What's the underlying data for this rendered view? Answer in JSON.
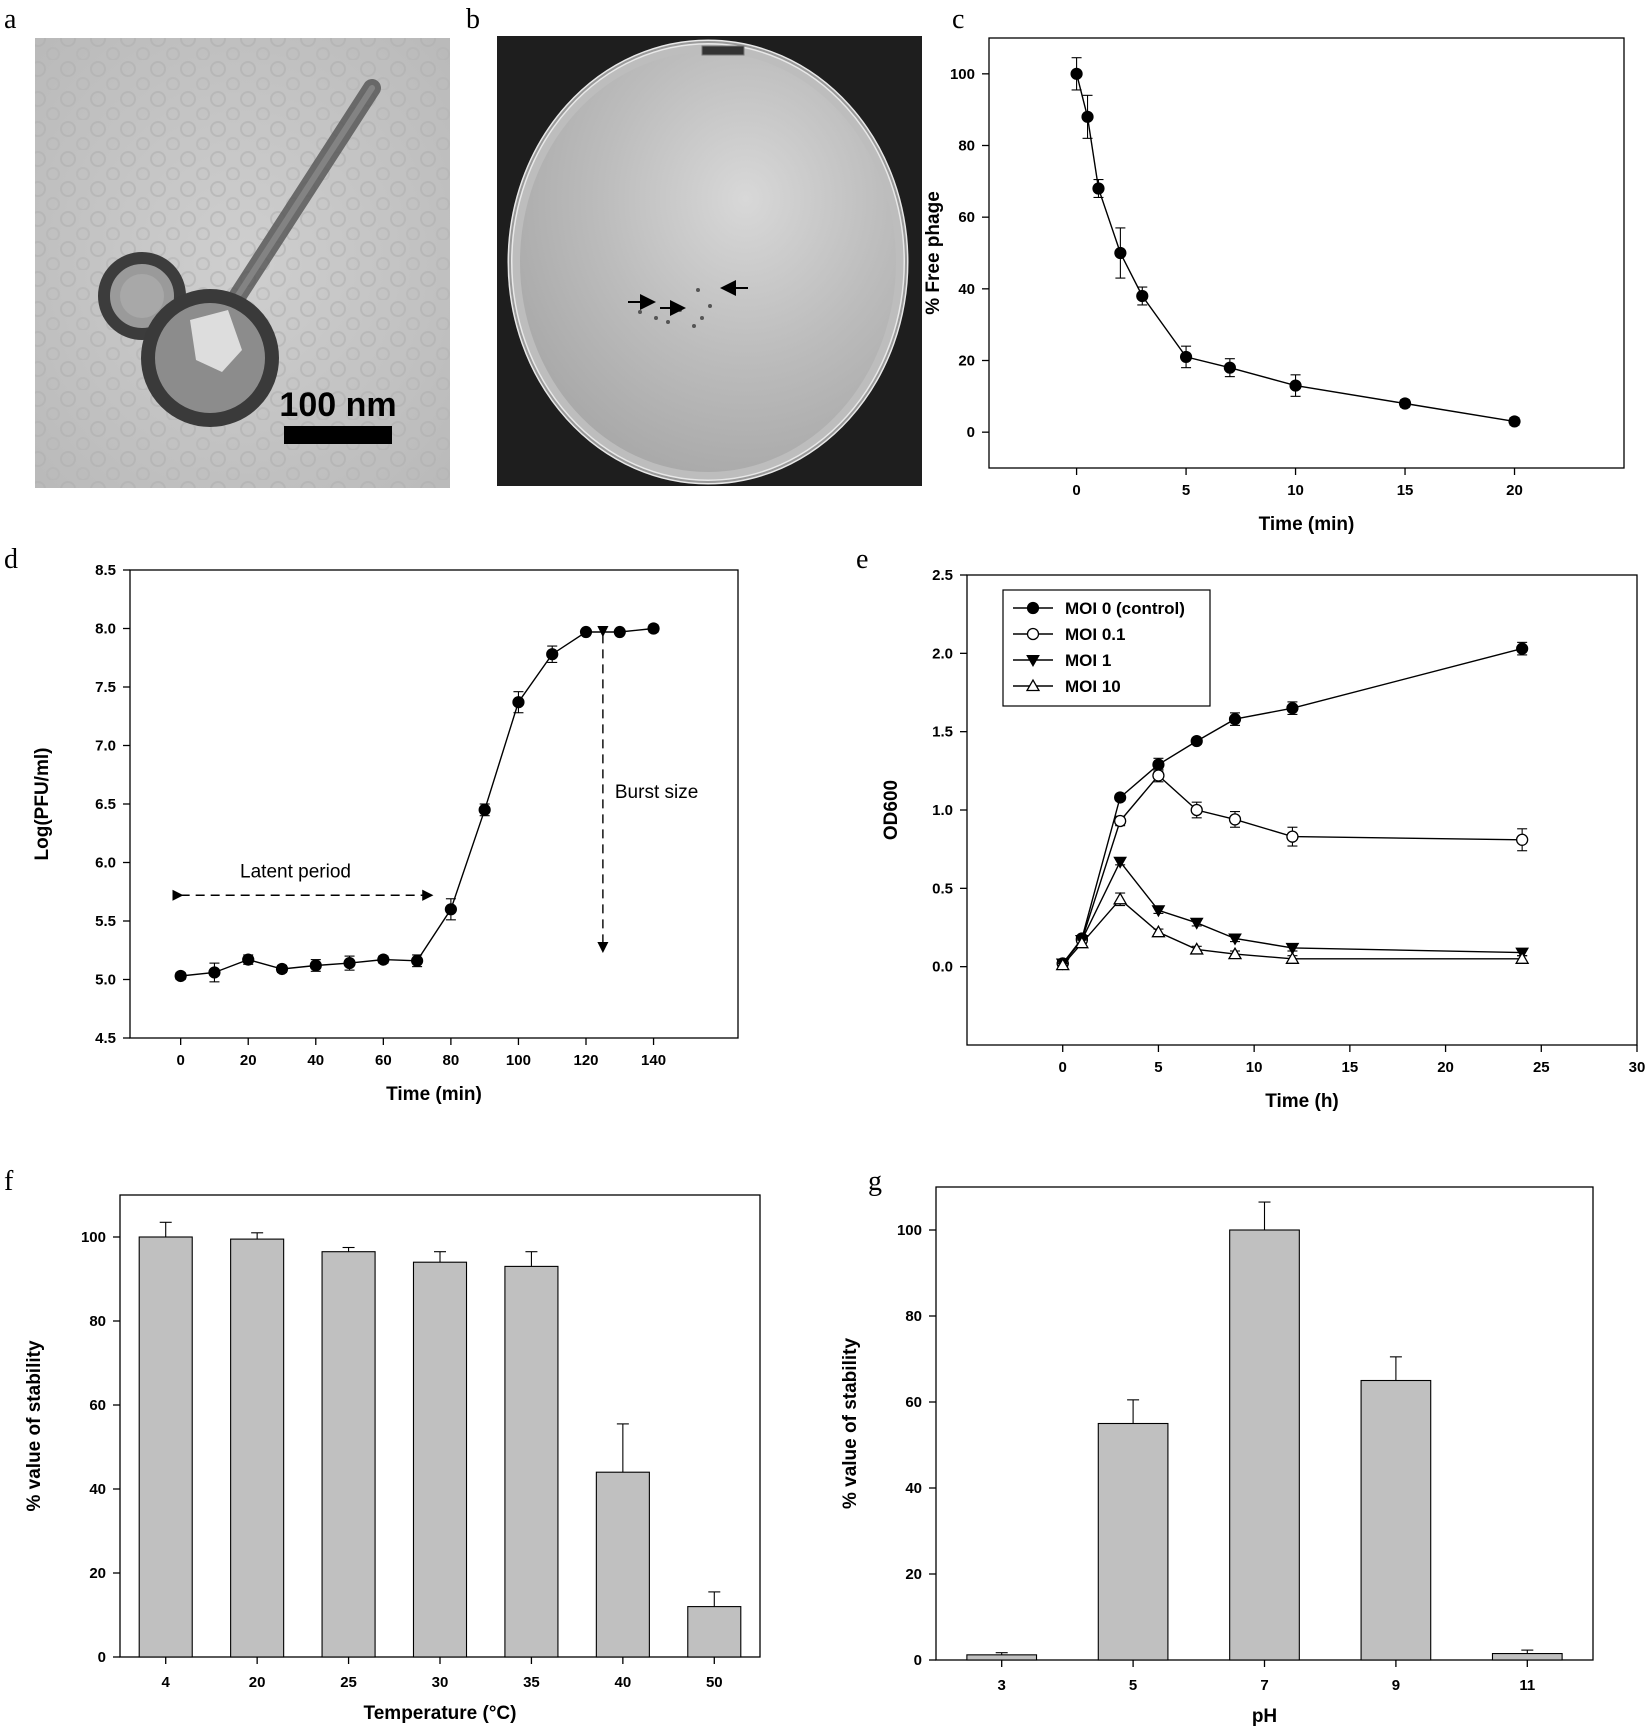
{
  "panel_letters": [
    "a",
    "b",
    "c",
    "d",
    "e",
    "f",
    "g"
  ],
  "micrograph": {
    "scale_label": "100 nm"
  },
  "chart_data": [
    {
      "panel": "c",
      "type": "line",
      "xlabel": "Time (min)",
      "ylabel": "% Free phage",
      "xlim": [
        -4,
        25
      ],
      "ylim": [
        -10,
        110
      ],
      "xticks": [
        0,
        5,
        10,
        15,
        20
      ],
      "yticks": [
        0,
        20,
        40,
        60,
        80,
        100
      ],
      "grid": false,
      "series": [
        {
          "marker": "filled-circle",
          "x": [
            0,
            0.5,
            1,
            2,
            3,
            5,
            7,
            10,
            15,
            20
          ],
          "y": [
            100,
            88,
            68,
            50,
            38,
            21,
            18,
            13,
            8,
            3
          ],
          "err": [
            4.5,
            6,
            2.5,
            7,
            2.5,
            3,
            2.5,
            3,
            1,
            1
          ]
        }
      ]
    },
    {
      "panel": "d",
      "type": "line",
      "xlabel": "Time (min)",
      "ylabel": "Log(PFU/ml)",
      "xlim": [
        -15,
        165
      ],
      "ylim": [
        4.5,
        8.5
      ],
      "xticks": [
        0,
        20,
        40,
        60,
        80,
        100,
        120,
        140
      ],
      "yticks": [
        4.5,
        5.0,
        5.5,
        6.0,
        6.5,
        7.0,
        7.5,
        8.0,
        8.5
      ],
      "grid": false,
      "series": [
        {
          "marker": "filled-circle",
          "x": [
            0,
            10,
            20,
            30,
            40,
            50,
            60,
            70,
            80,
            90,
            100,
            110,
            120,
            130,
            140
          ],
          "y": [
            5.03,
            5.06,
            5.17,
            5.09,
            5.12,
            5.14,
            5.17,
            5.16,
            5.6,
            6.45,
            7.37,
            7.78,
            7.97,
            7.97,
            8.0
          ],
          "err": [
            0.03,
            0.08,
            0.04,
            0.03,
            0.05,
            0.06,
            0.03,
            0.05,
            0.09,
            0.05,
            0.09,
            0.07,
            0.02,
            0.02,
            0.03
          ]
        }
      ],
      "annotations": [
        {
          "text": "Latent period"
        },
        {
          "text": "Burst size"
        }
      ]
    },
    {
      "panel": "e",
      "type": "line",
      "xlabel": "Time (h)",
      "ylabel": "OD600",
      "xlim": [
        -5,
        30
      ],
      "ylim": [
        -0.5,
        2.5
      ],
      "xticks": [
        0,
        5,
        10,
        15,
        20,
        25,
        30
      ],
      "yticks": [
        0.0,
        0.5,
        1.0,
        1.5,
        2.0,
        2.5
      ],
      "grid": false,
      "legend_position": "top-left",
      "series": [
        {
          "name": "MOI 0 (control)",
          "marker": "filled-circle",
          "x": [
            0,
            1,
            3,
            5,
            7,
            9,
            12,
            24
          ],
          "y": [
            0.02,
            0.18,
            1.08,
            1.29,
            1.44,
            1.58,
            1.65,
            2.03
          ],
          "err": [
            0.01,
            0.02,
            0.02,
            0.04,
            0.02,
            0.04,
            0.04,
            0.04
          ]
        },
        {
          "name": "MOI 0.1",
          "marker": "open-circle",
          "x": [
            0,
            1,
            3,
            5,
            7,
            9,
            12,
            24
          ],
          "y": [
            0.02,
            0.17,
            0.93,
            1.22,
            1.0,
            0.94,
            0.83,
            0.81
          ],
          "err": [
            0.01,
            0.02,
            0.03,
            0.04,
            0.05,
            0.05,
            0.06,
            0.07
          ]
        },
        {
          "name": "MOI 1",
          "marker": "filled-triangle-down",
          "x": [
            0,
            1,
            3,
            5,
            7,
            9,
            12,
            24
          ],
          "y": [
            0.02,
            0.17,
            0.67,
            0.36,
            0.28,
            0.18,
            0.12,
            0.09
          ],
          "err": [
            0.01,
            0.02,
            0.02,
            0.02,
            0.02,
            0.02,
            0.02,
            0.02
          ]
        },
        {
          "name": "MOI 10",
          "marker": "open-triangle-up",
          "x": [
            0,
            1,
            3,
            5,
            7,
            9,
            12,
            24
          ],
          "y": [
            0.01,
            0.15,
            0.43,
            0.22,
            0.11,
            0.08,
            0.05,
            0.05
          ],
          "err": [
            0.01,
            0.02,
            0.04,
            0.02,
            0.02,
            0.02,
            0.02,
            0.02
          ]
        }
      ]
    },
    {
      "panel": "f",
      "type": "bar",
      "xlabel": "Temperature (°C)",
      "ylabel": "% value of stability",
      "ylim": [
        0,
        110
      ],
      "yticks": [
        0,
        20,
        40,
        60,
        80,
        100
      ],
      "categories": [
        "4",
        "20",
        "25",
        "30",
        "35",
        "40",
        "50"
      ],
      "values": [
        100,
        99.5,
        96.5,
        94,
        93,
        44,
        12
      ],
      "err": [
        3.5,
        1.5,
        1,
        2.5,
        3.5,
        11.5,
        3.5
      ],
      "bar_color": "#c0c0c0",
      "grid": false
    },
    {
      "panel": "g",
      "type": "bar",
      "xlabel": "pH",
      "ylabel": "% value of stability",
      "ylim": [
        0,
        110
      ],
      "yticks": [
        0,
        20,
        40,
        60,
        80,
        100
      ],
      "categories": [
        "3",
        "5",
        "7",
        "9",
        "11"
      ],
      "values": [
        1.2,
        55,
        100,
        65,
        1.5
      ],
      "err": [
        0.5,
        5.5,
        6.5,
        5.5,
        0.8
      ],
      "bar_color": "#c0c0c0",
      "grid": false
    }
  ]
}
